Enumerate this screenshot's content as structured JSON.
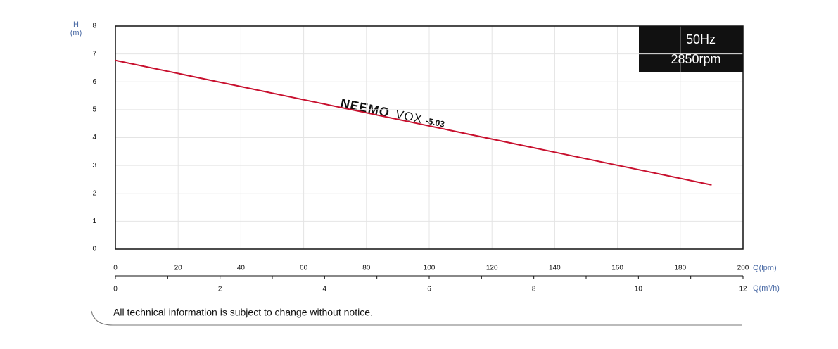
{
  "chart_data": {
    "type": "line",
    "y_label": "H",
    "y_unit": "(m)",
    "x_label": "Q(lpm)",
    "x2_label": "Q(m³/h)",
    "x": [
      0,
      190
    ],
    "values": [
      6.77,
      2.3
    ],
    "color": "#c8102e",
    "xlim": [
      0,
      200
    ],
    "xticks": [
      0,
      20,
      40,
      60,
      80,
      100,
      120,
      140,
      160,
      180,
      200
    ],
    "x2lim": [
      0,
      12
    ],
    "x2ticks": [
      0,
      2,
      4,
      6,
      8,
      10,
      12
    ],
    "x2minorticks": [
      1,
      3,
      5,
      7,
      9,
      11
    ],
    "ylim": [
      0,
      8
    ],
    "yticks": [
      0,
      1,
      2,
      3,
      4,
      5,
      6,
      7,
      8
    ],
    "grid": true,
    "curve_label": {
      "brand": "NEEMO",
      "model": "VOX",
      "size": "-5.03"
    },
    "badge": [
      "50Hz",
      "2850rpm"
    ]
  },
  "footnote": "All technical information is subject to change without notice."
}
